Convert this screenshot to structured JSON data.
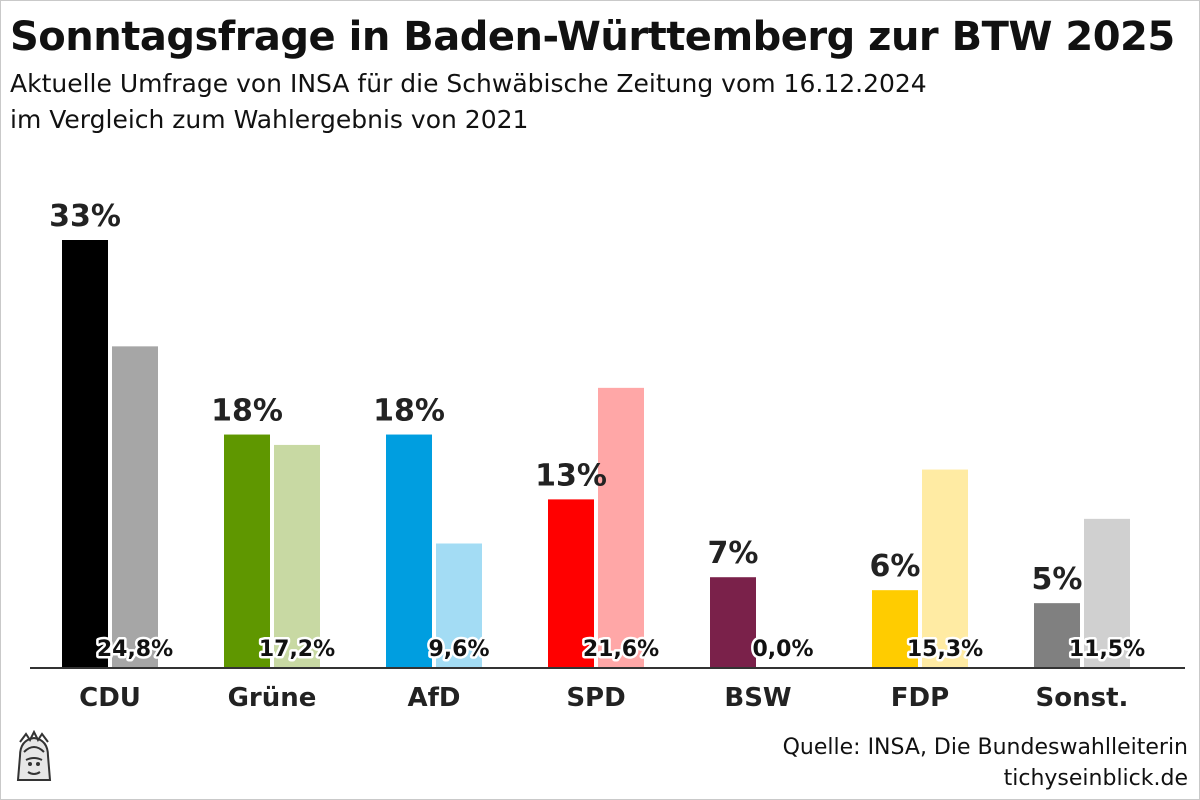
{
  "header": {
    "title": "Sonntagsfrage in Baden-Württemberg zur BTW 2025",
    "subtitle_line1": "Aktuelle Umfrage von INSA für die Schwäbische Zeitung vom 16.12.2024",
    "subtitle_line2": "im Vergleich zum Wahlergebnis von 2021"
  },
  "footer": {
    "source": "Quelle: INSA, Die Bundeswahlleiterin",
    "site": "tichyseinblick.de"
  },
  "chart_data": {
    "type": "bar",
    "title": "Sonntagsfrage in Baden-Württemberg zur BTW 2025",
    "categories": [
      "CDU",
      "Grüne",
      "AfD",
      "SPD",
      "BSW",
      "FDP",
      "Sonst."
    ],
    "series": [
      {
        "values": [
          33,
          18,
          18,
          13,
          7,
          6,
          5
        ],
        "labels": [
          "33%",
          "18%",
          "18%",
          "13%",
          "7%",
          "6%",
          "5%"
        ],
        "colors": [
          "#000000",
          "#5f9700",
          "#009ee0",
          "#ff0000",
          "#7a214a",
          "#ffcc00",
          "#808080"
        ]
      },
      {
        "values": [
          24.8,
          17.2,
          9.6,
          21.6,
          0.0,
          15.3,
          11.5
        ],
        "labels": [
          "24,8%",
          "17,2%",
          "9,6%",
          "21,6%",
          "0,0%",
          "15,3%",
          "11,5%"
        ],
        "colors": [
          "#a6a6a6",
          "#c8d9a3",
          "#a3dcf4",
          "#ffa7a7",
          "#d9c2cd",
          "#ffeba3",
          "#d0d0d0"
        ]
      }
    ],
    "xlabel": "",
    "ylabel": "",
    "ylim": [
      0,
      33
    ],
    "grid": false,
    "legend": "none"
  }
}
